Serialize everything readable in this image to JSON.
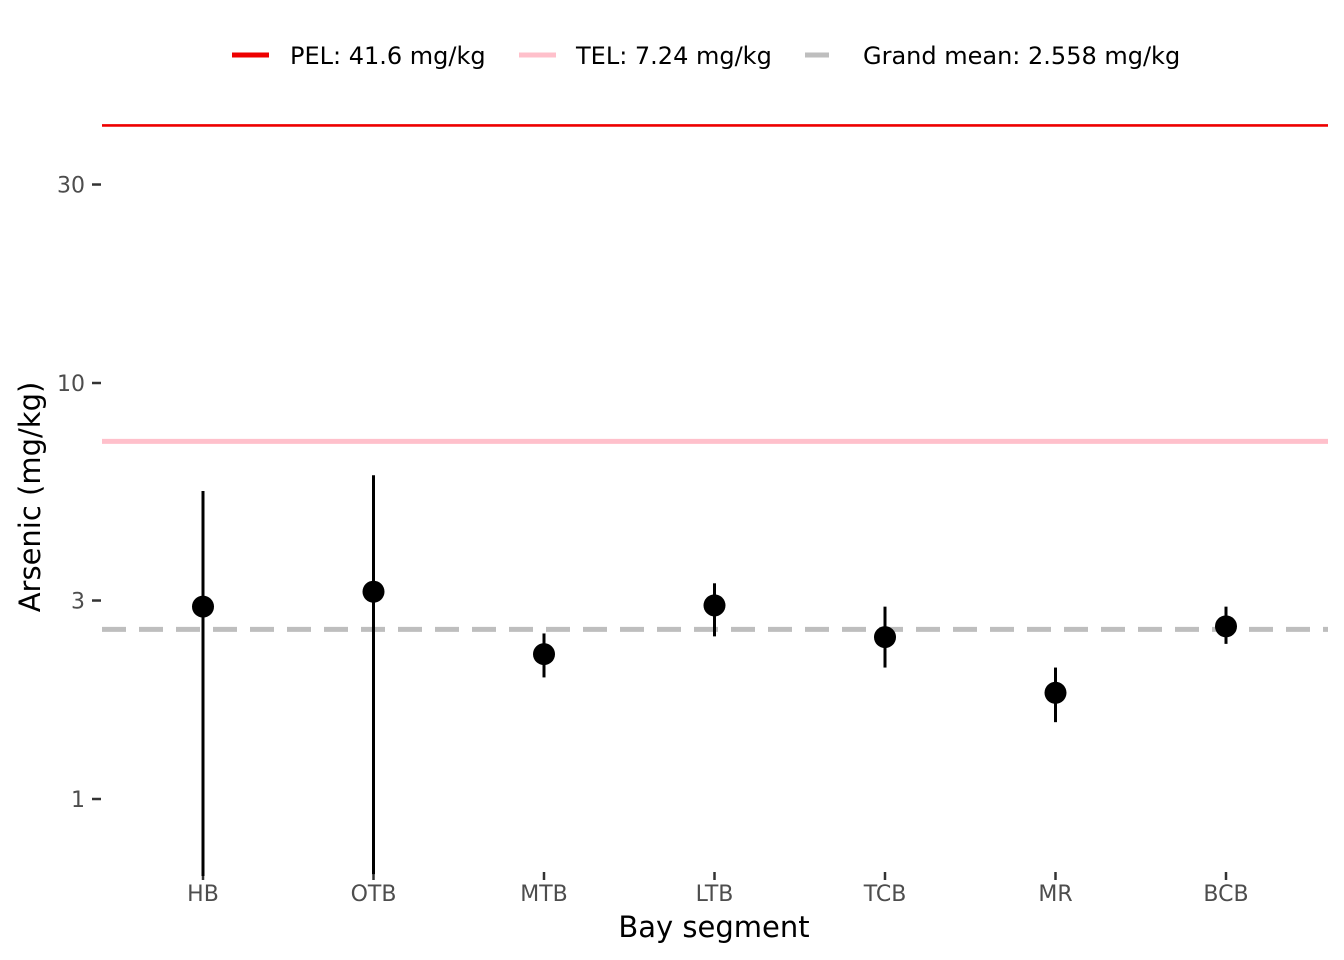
{
  "chart_data": {
    "type": "scatter",
    "xlabel": "Bay segment",
    "ylabel": "Arsenic (mg/kg)",
    "yscale": "log10",
    "ylim": [
      0.62,
      48
    ],
    "yticks": [
      1,
      3,
      10,
      30
    ],
    "ytick_labels": [
      "1",
      "3",
      "10",
      "30"
    ],
    "categories": [
      "HB",
      "OTB",
      "MTB",
      "LTB",
      "TCB",
      "MR",
      "BCB"
    ],
    "means": [
      2.9,
      3.15,
      2.23,
      2.92,
      2.45,
      1.8,
      2.6
    ],
    "lower": [
      0.62,
      0.66,
      1.96,
      2.46,
      2.07,
      1.53,
      2.36
    ],
    "upper": [
      5.5,
      6.0,
      2.5,
      3.3,
      2.9,
      2.07,
      2.9
    ],
    "reference_lines": [
      {
        "key": "pel",
        "value": 41.6,
        "label": "PEL: 41.6 mg/kg",
        "color": "#ee0000",
        "style": "solid"
      },
      {
        "key": "tel",
        "value": 7.24,
        "label": "TEL: 7.24 mg/kg",
        "color": "#ffc0cb",
        "style": "solid"
      },
      {
        "key": "grand_mean",
        "value": 2.558,
        "label": "Grand mean: 2.558 mg/kg",
        "color": "#bebebe",
        "style": "dashed"
      }
    ],
    "legend_position": "top",
    "grid": false,
    "point_color": "#000000"
  }
}
